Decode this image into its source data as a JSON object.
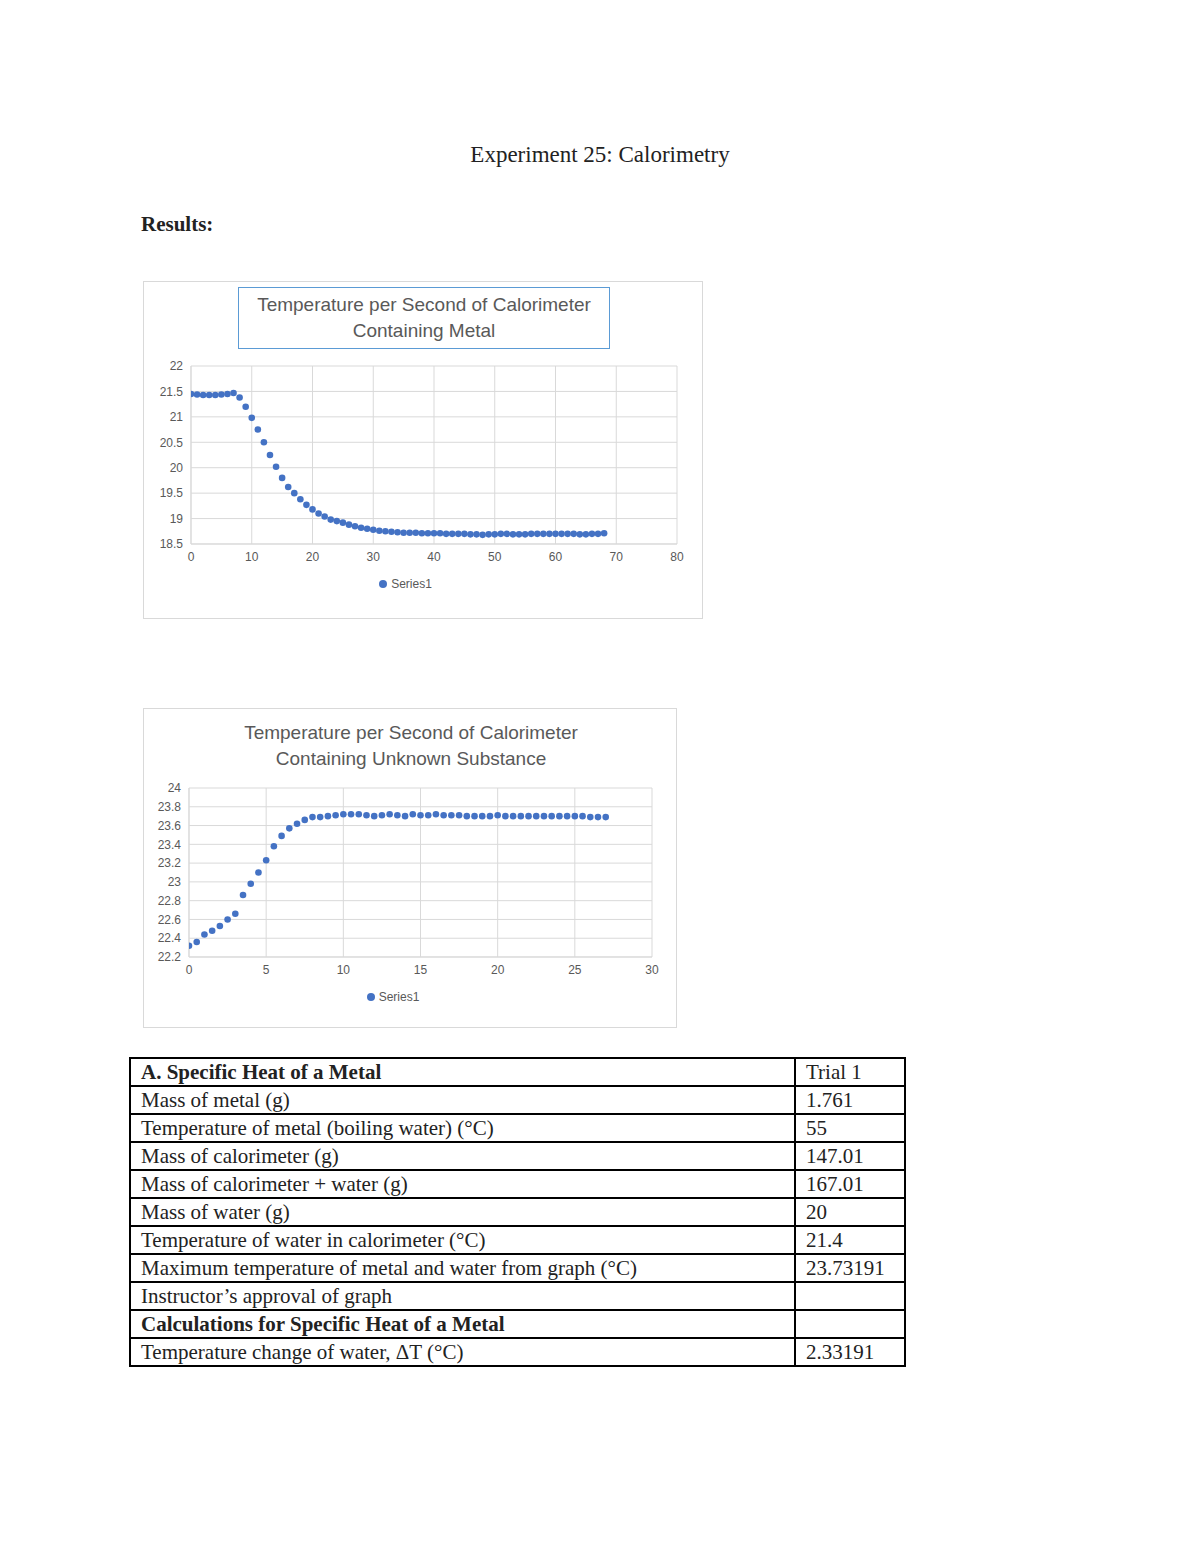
{
  "title": "Experiment 25: Calorimetry",
  "heading": "Results:",
  "chart_data": [
    {
      "type": "scatter",
      "title": "Temperature per Second of Calorimeter Containing Metal",
      "x": [
        0,
        1,
        2,
        3,
        4,
        5,
        6,
        7,
        8,
        9,
        10,
        11,
        12,
        13,
        14,
        15,
        16,
        17,
        18,
        19,
        20,
        21,
        22,
        23,
        24,
        25,
        26,
        27,
        28,
        29,
        30,
        31,
        32,
        33,
        34,
        35,
        36,
        37,
        38,
        39,
        40,
        41,
        42,
        43,
        44,
        45,
        46,
        47,
        48,
        49,
        50,
        51,
        52,
        53,
        54,
        55,
        56,
        57,
        58,
        59,
        60,
        61,
        62,
        63,
        64,
        65,
        66,
        67,
        68
      ],
      "series": [
        {
          "name": "Series1",
          "color": "#4472c4",
          "marker": "circle",
          "values": [
            21.45,
            21.44,
            21.43,
            21.43,
            21.43,
            21.44,
            21.45,
            21.47,
            21.38,
            21.2,
            20.98,
            20.75,
            20.5,
            20.25,
            20.02,
            19.8,
            19.62,
            19.5,
            19.38,
            19.27,
            19.18,
            19.1,
            19.04,
            18.98,
            18.95,
            18.92,
            18.88,
            18.85,
            18.82,
            18.8,
            18.78,
            18.76,
            18.75,
            18.74,
            18.73,
            18.72,
            18.72,
            18.72,
            18.71,
            18.71,
            18.71,
            18.71,
            18.7,
            18.7,
            18.7,
            18.7,
            18.69,
            18.69,
            18.68,
            18.69,
            18.69,
            18.7,
            18.7,
            18.69,
            18.69,
            18.69,
            18.7,
            18.7,
            18.7,
            18.7,
            18.7,
            18.7,
            18.7,
            18.7,
            18.69,
            18.69,
            18.7,
            18.7,
            18.71
          ]
        }
      ],
      "xlim": [
        0,
        80
      ],
      "xticks": [
        0,
        10,
        20,
        30,
        40,
        50,
        60,
        70,
        80
      ],
      "ylim": [
        18.5,
        22
      ],
      "yticks": [
        18.5,
        19,
        19.5,
        20,
        20.5,
        21,
        21.5,
        22
      ],
      "grid": true,
      "legend": "bottom"
    },
    {
      "type": "scatter",
      "title": "Temperature per Second of Calorimeter Containing Unknown Substance",
      "x": [
        0,
        0.5,
        1,
        1.5,
        2,
        2.5,
        3,
        3.5,
        4,
        4.5,
        5,
        5.5,
        6,
        6.5,
        7,
        7.5,
        8,
        8.5,
        9,
        9.5,
        10,
        10.5,
        11,
        11.5,
        12,
        12.5,
        13,
        13.5,
        14,
        14.5,
        15,
        15.5,
        16,
        16.5,
        17,
        17.5,
        18,
        18.5,
        19,
        19.5,
        20,
        20.5,
        21,
        21.5,
        22,
        22.5,
        23,
        23.5,
        24,
        24.5,
        25,
        25.5,
        26,
        26.5,
        27
      ],
      "series": [
        {
          "name": "Series1",
          "color": "#4472c4",
          "marker": "circle",
          "values": [
            22.32,
            22.36,
            22.44,
            22.48,
            22.53,
            22.6,
            22.66,
            22.86,
            22.98,
            23.1,
            23.23,
            23.38,
            23.49,
            23.57,
            23.62,
            23.66,
            23.69,
            23.69,
            23.7,
            23.71,
            23.72,
            23.72,
            23.72,
            23.71,
            23.7,
            23.71,
            23.72,
            23.71,
            23.7,
            23.72,
            23.71,
            23.71,
            23.72,
            23.71,
            23.71,
            23.71,
            23.7,
            23.7,
            23.7,
            23.7,
            23.71,
            23.7,
            23.7,
            23.7,
            23.7,
            23.7,
            23.7,
            23.7,
            23.7,
            23.7,
            23.7,
            23.7,
            23.69,
            23.69,
            23.69
          ]
        }
      ],
      "xlim": [
        0,
        30
      ],
      "xticks": [
        0,
        5,
        10,
        15,
        20,
        25,
        30
      ],
      "ylim": [
        22.2,
        24
      ],
      "yticks": [
        22.2,
        22.4,
        22.6,
        22.8,
        23,
        23.2,
        23.4,
        23.6,
        23.8,
        24
      ],
      "grid": true,
      "legend": "bottom"
    }
  ],
  "table": {
    "sections": [
      {
        "heading": "A. Specific Heat of a Metal",
        "column": "Trial 1",
        "rows": [
          [
            "Mass of metal (g)",
            "1.761"
          ],
          [
            "Temperature of metal (boiling water) (°C)",
            "55"
          ],
          [
            "Mass of calorimeter (g)",
            "147.01"
          ],
          [
            "Mass of calorimeter + water (g)",
            "167.01"
          ],
          [
            "Mass of water (g)",
            "20"
          ],
          [
            "Temperature of water in calorimeter (°C)",
            "21.4"
          ],
          [
            "Maximum temperature of metal and water from graph (°C)",
            "23.73191"
          ],
          [
            "Instructor’s approval of graph",
            null
          ]
        ]
      },
      {
        "heading": "Calculations for Specific Heat of a Metal",
        "column": null,
        "rows": [
          [
            "Temperature change of water, ΔT (°C)",
            "2.33191"
          ]
        ]
      }
    ]
  }
}
